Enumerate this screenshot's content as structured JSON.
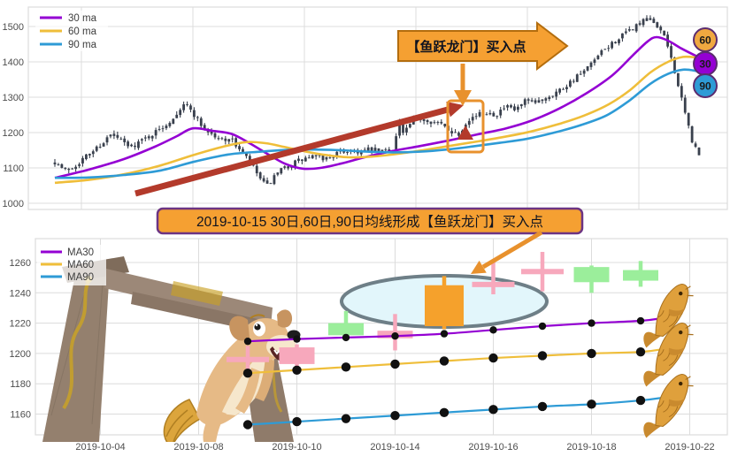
{
  "colors": {
    "ma30": "#9400D3",
    "ma60": "#EFBE3A",
    "ma90": "#2E9BD6",
    "candle_dark": "#39404D",
    "candle_pink": "#F7A8BC",
    "candle_green": "#9BEE9B",
    "candle_orange": "#F5A12C",
    "candle_gray": "#D9D9D9",
    "arrow_red": "#B33A2B",
    "arrow_orange": "#E8912D",
    "banner_fill": "#F5A032",
    "banner_border": "#B36D0E",
    "annotation_border": "#6C3483",
    "badge_border": "#5B2C6F",
    "ellipse_fill": "#E2F6FB",
    "ellipse_stroke": "#6E7F87",
    "grid": "#DCDCDC",
    "axis_text": "#4D4D4D",
    "dot": "#111111"
  },
  "annotation_box": {
    "text": "2019-10-15 30日,60日,90日均线形成【鱼跃龙门】买入点"
  },
  "chart_data": [
    {
      "type": "candlestick",
      "panel": "top",
      "legend": [
        "30 ma",
        "60 ma",
        "90 ma"
      ],
      "legend_position": "upper-left",
      "grid": true,
      "ylim": [
        982,
        1556
      ],
      "y_ticks": [
        1000,
        1100,
        1200,
        1300,
        1400,
        1500
      ],
      "candle_count": 186,
      "seed": 7,
      "price_anchors": [
        [
          0,
          1118
        ],
        [
          0.015,
          1092
        ],
        [
          0.03,
          1105
        ],
        [
          0.05,
          1135
        ],
        [
          0.07,
          1165
        ],
        [
          0.086,
          1192
        ],
        [
          0.1,
          1182
        ],
        [
          0.115,
          1158
        ],
        [
          0.135,
          1178
        ],
        [
          0.16,
          1205
        ],
        [
          0.18,
          1235
        ],
        [
          0.2,
          1282
        ],
        [
          0.212,
          1262
        ],
        [
          0.23,
          1215
        ],
        [
          0.255,
          1178
        ],
        [
          0.27,
          1185
        ],
        [
          0.285,
          1158
        ],
        [
          0.3,
          1122
        ],
        [
          0.318,
          1072
        ],
        [
          0.328,
          1045
        ],
        [
          0.34,
          1072
        ],
        [
          0.355,
          1098
        ],
        [
          0.375,
          1118
        ],
        [
          0.4,
          1132
        ],
        [
          0.42,
          1126
        ],
        [
          0.44,
          1142
        ],
        [
          0.46,
          1152
        ],
        [
          0.475,
          1145
        ],
        [
          0.49,
          1152
        ],
        [
          0.505,
          1146
        ],
        [
          0.52,
          1152
        ],
        [
          0.528,
          1160
        ],
        [
          0.533,
          1248
        ],
        [
          0.54,
          1196
        ],
        [
          0.555,
          1230
        ],
        [
          0.57,
          1242
        ],
        [
          0.585,
          1232
        ],
        [
          0.6,
          1222
        ],
        [
          0.615,
          1205
        ],
        [
          0.628,
          1195
        ],
        [
          0.64,
          1238
        ],
        [
          0.655,
          1248
        ],
        [
          0.67,
          1258
        ],
        [
          0.685,
          1252
        ],
        [
          0.7,
          1272
        ],
        [
          0.715,
          1262
        ],
        [
          0.73,
          1288
        ],
        [
          0.745,
          1282
        ],
        [
          0.76,
          1298
        ],
        [
          0.775,
          1312
        ],
        [
          0.79,
          1328
        ],
        [
          0.805,
          1352
        ],
        [
          0.82,
          1368
        ],
        [
          0.835,
          1398
        ],
        [
          0.85,
          1428
        ],
        [
          0.865,
          1452
        ],
        [
          0.88,
          1472
        ],
        [
          0.895,
          1492
        ],
        [
          0.91,
          1512
        ],
        [
          0.925,
          1518
        ],
        [
          0.938,
          1498
        ],
        [
          0.95,
          1452
        ],
        [
          0.96,
          1392
        ],
        [
          0.97,
          1312
        ],
        [
          0.98,
          1242
        ],
        [
          0.99,
          1172
        ],
        [
          1,
          1135
        ]
      ],
      "ma_lines": {
        "ma30": [
          [
            62,
            1072
          ],
          [
            100,
            1095
          ],
          [
            140,
            1125
          ],
          [
            175,
            1160
          ],
          [
            200,
            1190
          ],
          [
            218,
            1212
          ],
          [
            240,
            1205
          ],
          [
            262,
            1196
          ],
          [
            282,
            1170
          ],
          [
            302,
            1140
          ],
          [
            322,
            1112
          ],
          [
            342,
            1098
          ],
          [
            362,
            1100
          ],
          [
            385,
            1112
          ],
          [
            412,
            1130
          ],
          [
            442,
            1147
          ],
          [
            475,
            1162
          ],
          [
            508,
            1178
          ],
          [
            540,
            1195
          ],
          [
            572,
            1212
          ],
          [
            602,
            1235
          ],
          [
            632,
            1268
          ],
          [
            662,
            1310
          ],
          [
            692,
            1362
          ],
          [
            715,
            1418
          ],
          [
            732,
            1458
          ],
          [
            742,
            1470
          ],
          [
            755,
            1460
          ],
          [
            770,
            1438
          ],
          [
            788,
            1415
          ]
        ],
        "ma60": [
          [
            62,
            1058
          ],
          [
            100,
            1066
          ],
          [
            140,
            1082
          ],
          [
            180,
            1106
          ],
          [
            218,
            1136
          ],
          [
            252,
            1160
          ],
          [
            278,
            1173
          ],
          [
            300,
            1170
          ],
          [
            322,
            1159
          ],
          [
            346,
            1146
          ],
          [
            370,
            1136
          ],
          [
            394,
            1130
          ],
          [
            420,
            1132
          ],
          [
            450,
            1140
          ],
          [
            480,
            1151
          ],
          [
            510,
            1163
          ],
          [
            540,
            1175
          ],
          [
            570,
            1188
          ],
          [
            600,
            1203
          ],
          [
            630,
            1223
          ],
          [
            660,
            1248
          ],
          [
            688,
            1280
          ],
          [
            712,
            1320
          ],
          [
            735,
            1370
          ],
          [
            755,
            1400
          ],
          [
            772,
            1414
          ],
          [
            788,
            1412
          ]
        ],
        "ma90": [
          [
            62,
            1072
          ],
          [
            100,
            1073
          ],
          [
            140,
            1080
          ],
          [
            180,
            1092
          ],
          [
            220,
            1118
          ],
          [
            258,
            1138
          ],
          [
            295,
            1146
          ],
          [
            325,
            1151
          ],
          [
            355,
            1152
          ],
          [
            385,
            1150
          ],
          [
            415,
            1146
          ],
          [
            445,
            1144
          ],
          [
            475,
            1146
          ],
          [
            505,
            1152
          ],
          [
            535,
            1161
          ],
          [
            565,
            1171
          ],
          [
            595,
            1182
          ],
          [
            625,
            1199
          ],
          [
            655,
            1220
          ],
          [
            685,
            1248
          ],
          [
            710,
            1288
          ],
          [
            735,
            1338
          ],
          [
            755,
            1366
          ],
          [
            772,
            1378
          ],
          [
            788,
            1374
          ]
        ]
      },
      "ma_end_badges": [
        {
          "label": "60",
          "color": "#F0A840"
        },
        {
          "label": "30",
          "color": "#9400D3"
        },
        {
          "label": "90",
          "color": "#2E9BD6"
        }
      ],
      "annotations": {
        "banner_text": "【鱼跃龙门】买入点",
        "trend_arrow": "up-right red arrow toward 2019-10-15 candle",
        "highlight_box": "orange rectangle around 2019-10-15 candle"
      }
    },
    {
      "type": "candlestick",
      "panel": "bottom",
      "legend": [
        "MA30",
        "MA60",
        "MA90"
      ],
      "legend_position": "upper-left",
      "grid": true,
      "ylim": [
        1146,
        1276
      ],
      "y_ticks": [
        1160,
        1180,
        1200,
        1220,
        1240,
        1260
      ],
      "x_tick_labels": [
        "2019-10-04",
        "2019-10-08",
        "2019-10-10",
        "2019-10-14",
        "2019-10-16",
        "2019-10-18",
        "2019-10-22"
      ],
      "x_tick_days": [
        1,
        3,
        5,
        7,
        9,
        11,
        13
      ],
      "candles": [
        {
          "day": 4,
          "open": 1197,
          "high": 1205,
          "low": 1188,
          "close": 1196,
          "style": "pinkDoji"
        },
        {
          "day": 5,
          "open": 1204,
          "high": 1206,
          "low": 1191,
          "close": 1193,
          "style": "pink"
        },
        {
          "day": 6,
          "open": 1212,
          "high": 1228,
          "low": 1210,
          "close": 1220,
          "style": "green"
        },
        {
          "day": 7,
          "open": 1215,
          "high": 1226,
          "low": 1202,
          "close": 1210,
          "style": "pink"
        },
        {
          "day": 8,
          "open": 1218,
          "high": 1251,
          "low": 1216,
          "close": 1245,
          "style": "orange"
        },
        {
          "day": 9,
          "open": 1247,
          "high": 1262,
          "low": 1239,
          "close": 1244,
          "style": "grayDoji"
        },
        {
          "day": 10,
          "open": 1255,
          "high": 1267,
          "low": 1241,
          "close": 1254,
          "style": "pinkDoji"
        },
        {
          "day": 11,
          "open": 1247,
          "high": 1258,
          "low": 1240,
          "close": 1257,
          "style": "green"
        },
        {
          "day": 12,
          "open": 1248,
          "high": 1261,
          "low": 1244,
          "close": 1255,
          "style": "green"
        }
      ],
      "series": [
        {
          "name": "MA30",
          "days": [
            4,
            5,
            6,
            7,
            8,
            9,
            10,
            11,
            12
          ],
          "values": [
            1208,
            1209.5,
            1210.5,
            1211.5,
            1213,
            1215.5,
            1218,
            1220,
            1221.5
          ]
        },
        {
          "name": "MA60",
          "days": [
            4,
            5,
            6,
            7,
            8,
            9,
            10,
            11,
            12
          ],
          "values": [
            1187,
            1189,
            1191,
            1193,
            1195,
            1197,
            1198.5,
            1200,
            1201
          ]
        },
        {
          "name": "MA90",
          "days": [
            4,
            5,
            6,
            7,
            8,
            9,
            10,
            11,
            12
          ],
          "values": [
            1153,
            1155,
            1157,
            1159,
            1161,
            1163,
            1165,
            1166.5,
            1169
          ]
        }
      ],
      "highlight": {
        "day": 8,
        "shape": "ellipse"
      }
    }
  ]
}
